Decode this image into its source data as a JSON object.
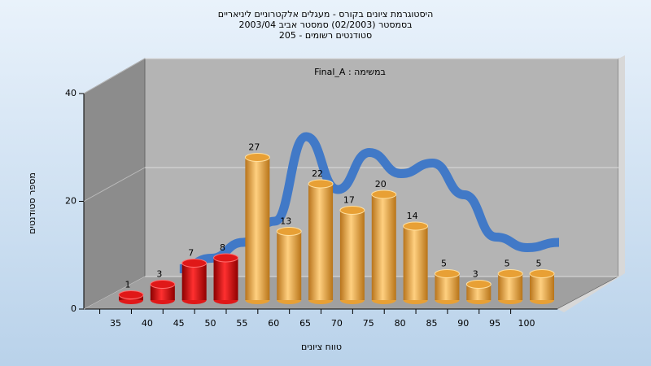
{
  "chart_data": {
    "type": "bar3d",
    "title": "היסטוגרמת ציונים בקורס - מעגלים אלקטרוניים ליניאריים",
    "subtitle": "בסמסטר  (02/2003)  סמסטר אביב 2003/04",
    "subtitle2": "סטודנטים רשומים - 205",
    "annotation": "Final_A : במשימה",
    "x_label": "טווח ציונים",
    "y_label": "מספר סטודנטים",
    "categories": [
      "35",
      "40",
      "45",
      "50",
      "55",
      "60",
      "65",
      "70",
      "75",
      "80",
      "85",
      "90",
      "95",
      "100"
    ],
    "values": [
      1,
      3,
      7,
      8,
      27,
      13,
      22,
      17,
      20,
      14,
      5,
      3,
      5,
      5
    ],
    "colors": [
      "#e01818",
      "#e01818",
      "#e01818",
      "#e01818",
      "#e8a035",
      "#e8a035",
      "#e8a035",
      "#e8a035",
      "#e8a035",
      "#e8a035",
      "#e8a035",
      "#e8a035",
      "#e8a035",
      "#e8a035"
    ],
    "curve": {
      "color": "#3b76c8",
      "values": [
        null,
        3,
        5,
        8,
        12,
        28,
        18,
        25,
        21,
        23,
        17,
        9,
        7,
        8
      ]
    },
    "ylim": [
      0,
      40
    ],
    "yticks": [
      0,
      20,
      40
    ],
    "grid": true
  }
}
